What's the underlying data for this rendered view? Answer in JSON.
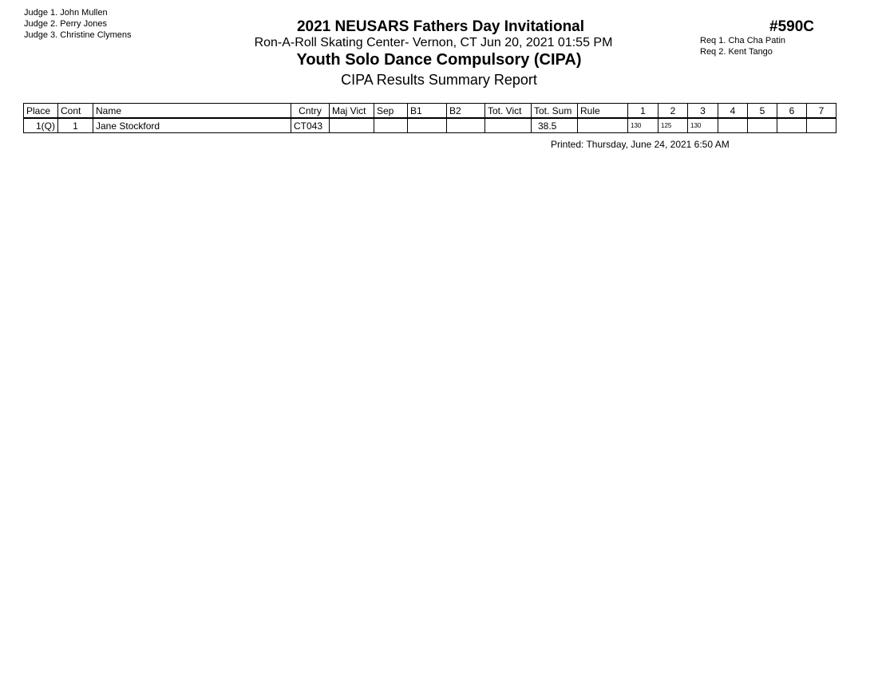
{
  "judges": [
    "Judge  1.  John Mullen",
    "Judge  2.  Perry Jones",
    "Judge  3.  Christine Clymens"
  ],
  "title": "2021 NEUSARS Fathers Day Invitational",
  "venue": "Ron-A-Roll Skating Center- Vernon, CT  Jun 20, 2021  01:55 PM",
  "event": "Youth Solo Dance Compulsory (CIPA)",
  "report": "CIPA Results Summary Report",
  "event_number": "#590C",
  "requirements": [
    "Req  1.  Cha Cha Patin",
    "Req  2.  Kent Tango"
  ],
  "table": {
    "headers": [
      "Place",
      "Cont",
      "Name",
      "Cntry",
      "Maj Vict",
      "Sep",
      "B1",
      "B2",
      "Tot. Vict",
      "Tot. Sum",
      "Rule",
      "1",
      "2",
      "3",
      "4",
      "5",
      "6",
      "7"
    ],
    "rows": [
      [
        "1(Q)",
        "1",
        "Jane Stockford",
        "CT043",
        "",
        "",
        "",
        "",
        "",
        "38.5",
        "",
        "130",
        "125",
        "130",
        "",
        "",
        "",
        ""
      ]
    ]
  },
  "printed": "Printed:  Thursday, June 24, 2021  6:50 AM"
}
